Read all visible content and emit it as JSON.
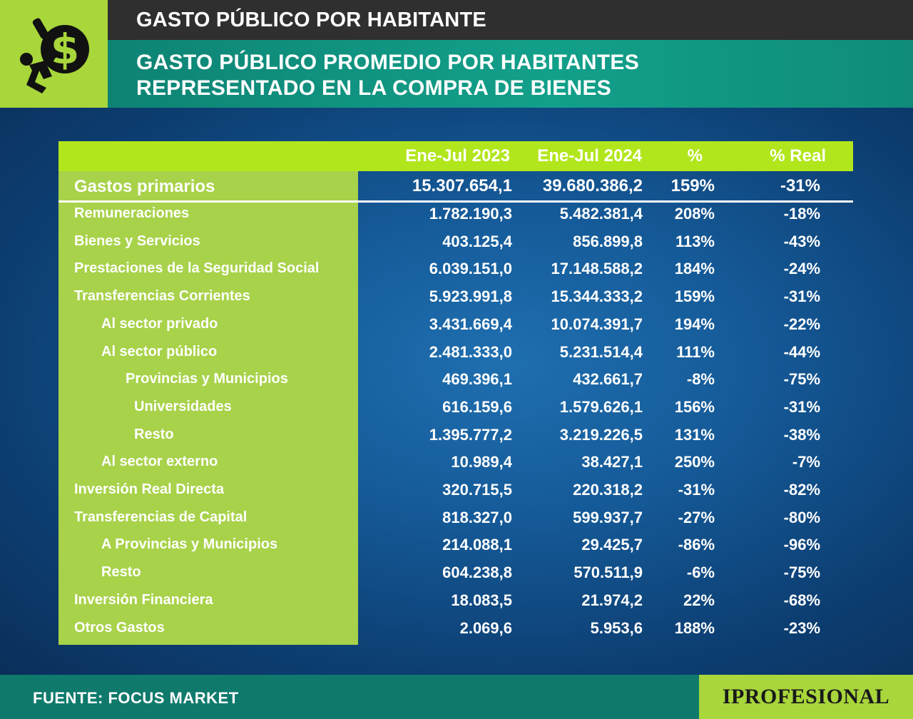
{
  "header": {
    "title": "GASTO PÚBLICO POR HABITANTE",
    "subtitle_line1": "GASTO PÚBLICO PROMEDIO POR HABITANTES",
    "subtitle_line2": "REPRESENTADO EN LA COMPRA DE BIENES",
    "logo_icon": "dollar-burden-icon"
  },
  "footer": {
    "source": "FUENTE: FOCUS MARKET",
    "brand": "IPROFESIONAL"
  },
  "colors": {
    "accent_green": "#a8d24a",
    "header_green": "#b2e61c",
    "teal": "#12a08a",
    "dark": "#2f2f2f",
    "background_blue": "#155a98"
  },
  "chart_data": {
    "type": "table",
    "columns": [
      "",
      "Ene-Jul 2023",
      "Ene-Jul 2024",
      "%",
      "% Real"
    ],
    "rows": [
      {
        "label": "Gastos primarios",
        "indent": 0,
        "primary": true,
        "values": [
          "15.307.654,1",
          "39.680.386,2",
          "159%",
          "-31%"
        ]
      },
      {
        "label": "Remuneraciones",
        "indent": 0,
        "values": [
          "1.782.190,3",
          "5.482.381,4",
          "208%",
          "-18%"
        ]
      },
      {
        "label": "Bienes y Servicios",
        "indent": 0,
        "values": [
          "403.125,4",
          "856.899,8",
          "113%",
          "-43%"
        ]
      },
      {
        "label": "Prestaciones de la Seguridad Social",
        "indent": 0,
        "values": [
          "6.039.151,0",
          "17.148.588,2",
          "184%",
          "-24%"
        ]
      },
      {
        "label": "Transferencias Corrientes",
        "indent": 0,
        "values": [
          "5.923.991,8",
          "15.344.333,2",
          "159%",
          "-31%"
        ]
      },
      {
        "label": "Al sector privado",
        "indent": 1,
        "values": [
          "3.431.669,4",
          "10.074.391,7",
          "194%",
          "-22%"
        ]
      },
      {
        "label": "Al sector público",
        "indent": 1,
        "values": [
          "2.481.333,0",
          "5.231.514,4",
          "111%",
          "-44%"
        ]
      },
      {
        "label": "Provincias y Municipios",
        "indent": 2,
        "values": [
          "469.396,1",
          "432.661,7",
          "-8%",
          "-75%"
        ]
      },
      {
        "label": "Universidades",
        "indent": 3,
        "values": [
          "616.159,6",
          "1.579.626,1",
          "156%",
          "-31%"
        ]
      },
      {
        "label": "Resto",
        "indent": 3,
        "values": [
          "1.395.777,2",
          "3.219.226,5",
          "131%",
          "-38%"
        ]
      },
      {
        "label": "Al sector externo",
        "indent": 1,
        "values": [
          "10.989,4",
          "38.427,1",
          "250%",
          "-7%"
        ]
      },
      {
        "label": "Inversión Real Directa",
        "indent": 0,
        "values": [
          "320.715,5",
          "220.318,2",
          "-31%",
          "-82%"
        ]
      },
      {
        "label": "Transferencias de Capital",
        "indent": 0,
        "values": [
          "818.327,0",
          "599.937,7",
          "-27%",
          "-80%"
        ]
      },
      {
        "label": "A Provincias y Municipios",
        "indent": 1,
        "values": [
          "214.088,1",
          "29.425,7",
          "-86%",
          "-96%"
        ]
      },
      {
        "label": "Resto",
        "indent": 1,
        "values": [
          "604.238,8",
          "570.511,9",
          "-6%",
          "-75%"
        ]
      },
      {
        "label": "Inversión Financiera",
        "indent": 0,
        "values": [
          "18.083,5",
          "21.974,2",
          "22%",
          "-68%"
        ]
      },
      {
        "label": "Otros Gastos",
        "indent": 0,
        "values": [
          "2.069,6",
          "5.953,6",
          "188%",
          "-23%"
        ]
      }
    ]
  }
}
